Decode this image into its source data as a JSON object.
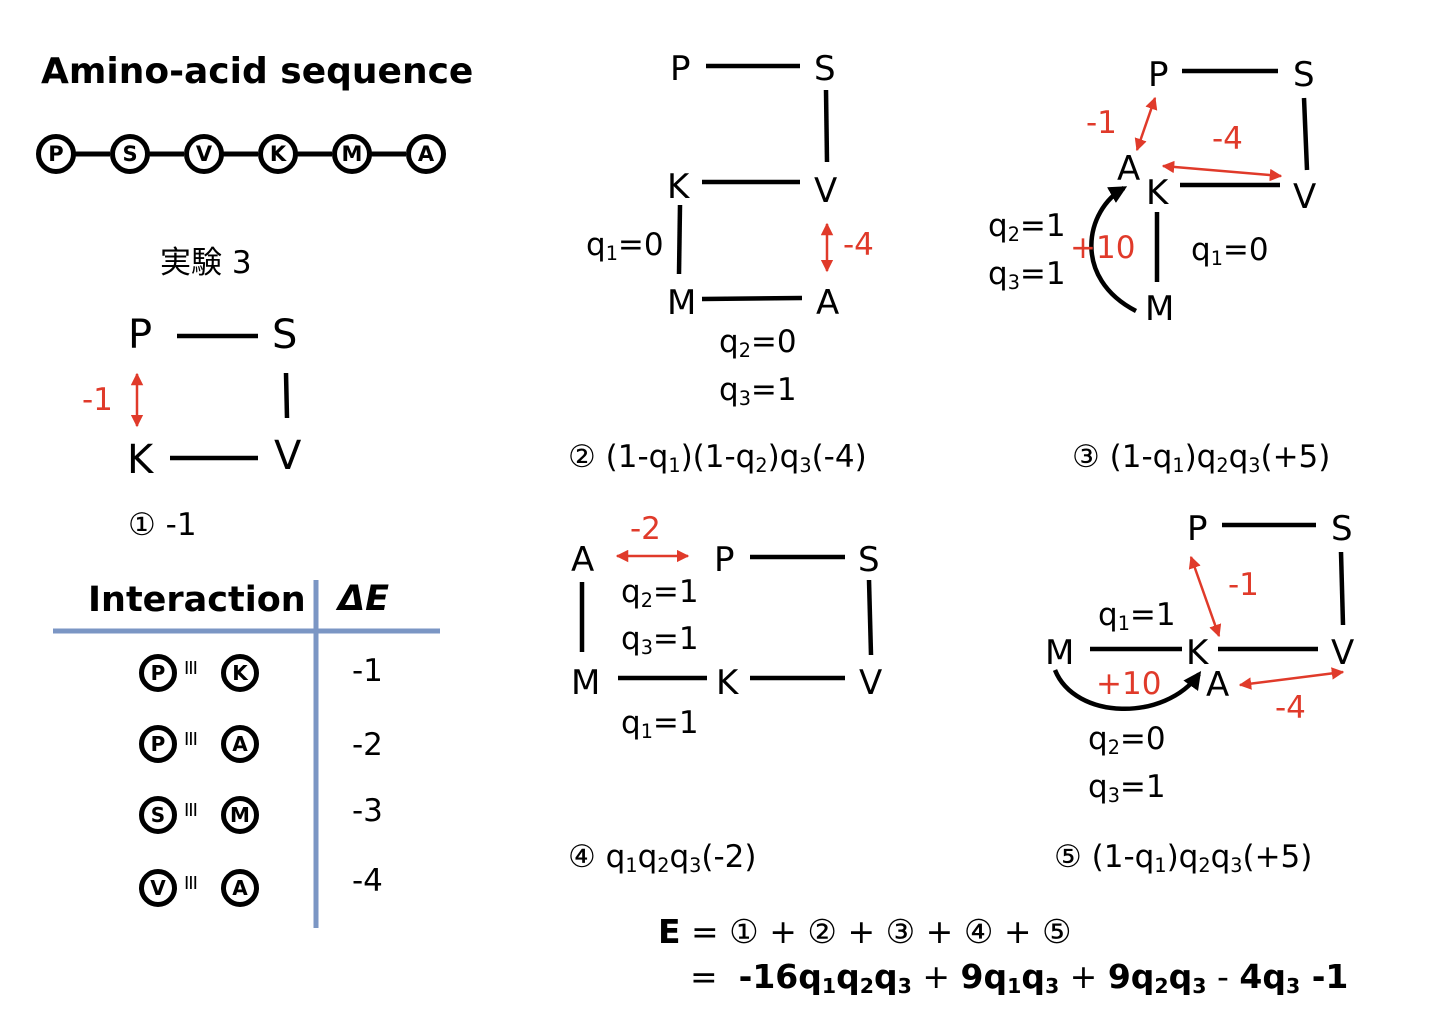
{
  "sequence": {
    "title": "Amino-acid sequence",
    "residues": [
      "P",
      "S",
      "V",
      "K",
      "M",
      "A"
    ]
  },
  "experiment_label": "実験 3",
  "interaction_table": {
    "header_interaction": "Interaction",
    "header_delta": "ΔE",
    "rows": [
      {
        "a": "P",
        "b": "K",
        "dE": "-1"
      },
      {
        "a": "P",
        "b": "A",
        "dE": "-2"
      },
      {
        "a": "S",
        "b": "M",
        "dE": "-3"
      },
      {
        "a": "V",
        "b": "A",
        "dE": "-4"
      }
    ],
    "line_color": "#7b96c4"
  },
  "colors": {
    "interaction": "#e03a2a",
    "bond": "#000000"
  },
  "configs": [
    {
      "id": "1",
      "nodes": {
        "P": "P",
        "S": "S",
        "K": "K",
        "V": "V"
      },
      "interactions": [
        "-1"
      ],
      "caption": {
        "num": "①",
        "text": "-1"
      }
    },
    {
      "id": "2",
      "nodes": {
        "P": "P",
        "S": "S",
        "K": "K",
        "V": "V",
        "M": "M",
        "A": "A"
      },
      "interactions": [
        "-4"
      ],
      "q": {
        "q1": "q1=0",
        "q2": "q2=0",
        "q3": "q3=1"
      },
      "caption": {
        "num": "②",
        "text": "(1-q1)(1-q2)q3(-4)"
      }
    },
    {
      "id": "3",
      "nodes": {
        "P": "P",
        "S": "S",
        "A": "A",
        "K": "K",
        "V": "V",
        "M": "M"
      },
      "interactions": [
        "-1",
        "-4",
        "+10"
      ],
      "q": {
        "q1": "q1=0",
        "q2": "q2=1",
        "q3": "q3=1"
      },
      "caption": {
        "num": "③",
        "text": "(1-q1)q2q3(+5)"
      }
    },
    {
      "id": "4",
      "nodes": {
        "A": "A",
        "P": "P",
        "S": "S",
        "M": "M",
        "K": "K",
        "V": "V"
      },
      "interactions": [
        "-2"
      ],
      "q": {
        "q1": "q1=1",
        "q2": "q2=1",
        "q3": "q3=1"
      },
      "caption": {
        "num": "④",
        "text": "q1q2q3(-2)"
      }
    },
    {
      "id": "5",
      "nodes": {
        "P": "P",
        "S": "S",
        "M": "M",
        "K": "K",
        "V": "V",
        "A": "A"
      },
      "interactions": [
        "-1",
        "+10",
        "-4"
      ],
      "q": {
        "q1": "q1=1",
        "q2": "q2=0",
        "q3": "q3=1"
      },
      "caption": {
        "num": "⑤",
        "text": "(1-q1)q2q3(+5)"
      }
    }
  ],
  "energy": {
    "line1": "E = ① + ② + ③ + ④ + ⑤",
    "line2": "=  -16q1q2q3 + 9q1q3 + 9q2q3 - 4q3 -1"
  }
}
